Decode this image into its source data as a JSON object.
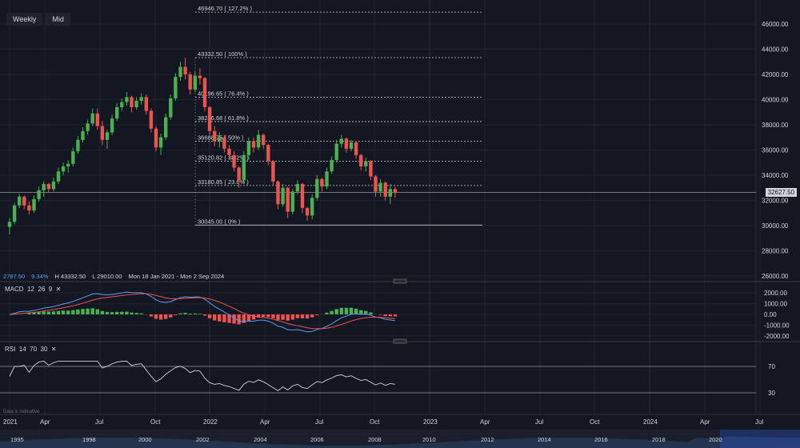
{
  "toolbar": {
    "interval": "Weekly",
    "price_mode": "Mid"
  },
  "fibs": [
    {
      "label": "46946.70 ( 127.2% )",
      "price": 46946.7
    },
    {
      "label": "43332.50 ( 100% )",
      "price": 43332.5
    },
    {
      "label": "40196.65 ( 76.4% )",
      "price": 40196.65
    },
    {
      "label": "38256.68 ( 61.8% )",
      "price": 38256.68
    },
    {
      "label": "36688.75 ( 50% )",
      "price": 36688.75
    },
    {
      "label": "35120.82 ( 38.2% )",
      "price": 35120.82
    },
    {
      "label": "33180.85 ( 23.6% )",
      "price": 33180.85
    },
    {
      "label": "30045.00 ( 0% )",
      "price": 30045.0
    }
  ],
  "price_axis": [
    "46000.00",
    "44000.00",
    "42000.00",
    "40000.00",
    "38000.00",
    "36000.00",
    "34000.00",
    "32000.00",
    "30000.00",
    "28000.00",
    "26000.00"
  ],
  "current_price": "32627.50",
  "info_bar": {
    "change": "2787.50",
    "percent": "9.34%",
    "high": "H 43332.50",
    "low": "L 29010.00",
    "range": "Mon 18 Jan 2021 - Mon 2 Sep 2024"
  },
  "macd": {
    "label": "MACD",
    "fast": "12",
    "slow": "26",
    "signal": "9",
    "axis": [
      "2000.00",
      "1000.00",
      "0.00",
      "-1000.00",
      "-2000.00"
    ]
  },
  "rsi": {
    "label": "RSI",
    "period": "14",
    "upper": "70",
    "lower": "30",
    "axis": [
      "70",
      "30"
    ]
  },
  "time_axis": [
    "2021",
    "Apr",
    "Jul",
    "Oct",
    "2022",
    "Apr",
    "Jul",
    "Oct",
    "2023",
    "Apr",
    "Jul",
    "Oct",
    "2024",
    "Apr",
    "Jul"
  ],
  "navigator_axis": [
    "1995",
    "1998",
    "2000",
    "2002",
    "2004",
    "2006",
    "2008",
    "2010",
    "2012",
    "2014",
    "2016",
    "2018",
    "2020"
  ],
  "data_note": "Data is indicative",
  "close_icon": "close-icon",
  "colors": {
    "up": "#26a69a",
    "up_bright": "#4caf50",
    "down": "#ef5350",
    "bg": "#131722",
    "macd_line": "#2962ff",
    "signal_line": "#ef5350"
  },
  "chart_data": {
    "type": "candlestick",
    "series": [
      {
        "name": "",
        "ohlc": [
          [
            29900,
            30600,
            29300,
            30300
          ],
          [
            30300,
            31800,
            30100,
            31600
          ],
          [
            31600,
            32500,
            31400,
            32300
          ],
          [
            32300,
            32400,
            31300,
            31600
          ],
          [
            31600,
            31900,
            30900,
            31200
          ],
          [
            31200,
            32400,
            31000,
            32100
          ],
          [
            32100,
            33100,
            31900,
            32800
          ],
          [
            32800,
            33500,
            32300,
            33300
          ],
          [
            33300,
            33400,
            32600,
            32900
          ],
          [
            32900,
            33800,
            32700,
            33500
          ],
          [
            33500,
            34600,
            33300,
            34300
          ],
          [
            34300,
            35000,
            34000,
            34700
          ],
          [
            34700,
            35200,
            34200,
            34900
          ],
          [
            34900,
            36200,
            34700,
            35900
          ],
          [
            35900,
            37100,
            35700,
            36800
          ],
          [
            36800,
            37800,
            36600,
            37500
          ],
          [
            37500,
            38400,
            37200,
            38100
          ],
          [
            38100,
            39300,
            37900,
            38900
          ],
          [
            38900,
            39300,
            37600,
            37900
          ],
          [
            37900,
            38300,
            36400,
            36800
          ],
          [
            36800,
            37600,
            36100,
            37400
          ],
          [
            37400,
            38800,
            37200,
            38500
          ],
          [
            38500,
            39700,
            38300,
            39400
          ],
          [
            39400,
            40100,
            39100,
            39800
          ],
          [
            39800,
            40600,
            39500,
            40200
          ],
          [
            40200,
            40300,
            39000,
            39400
          ],
          [
            39400,
            40200,
            39200,
            39900
          ],
          [
            39900,
            40500,
            39600,
            40200
          ],
          [
            40200,
            40400,
            38800,
            39100
          ],
          [
            39100,
            39300,
            37400,
            37700
          ],
          [
            37700,
            37900,
            35900,
            36200
          ],
          [
            36200,
            37300,
            35600,
            37000
          ],
          [
            37000,
            38900,
            36800,
            38600
          ],
          [
            38600,
            40400,
            38400,
            40100
          ],
          [
            40100,
            42100,
            39900,
            41800
          ],
          [
            41800,
            43000,
            41500,
            42600
          ],
          [
            42600,
            43332,
            41600,
            42000
          ],
          [
            42000,
            42200,
            40400,
            40800
          ],
          [
            40800,
            42200,
            40600,
            41900
          ],
          [
            41900,
            42500,
            41200,
            41700
          ],
          [
            41700,
            41800,
            39100,
            39400
          ],
          [
            39400,
            39500,
            37200,
            37500
          ],
          [
            37500,
            37900,
            36300,
            36700
          ],
          [
            36700,
            37400,
            36200,
            37000
          ],
          [
            37000,
            37200,
            35800,
            36100
          ],
          [
            36100,
            36400,
            35300,
            35600
          ],
          [
            35600,
            35900,
            34300,
            34600
          ],
          [
            34600,
            34700,
            33000,
            33600
          ],
          [
            33600,
            35900,
            33400,
            35600
          ],
          [
            35600,
            37000,
            35200,
            36700
          ],
          [
            36700,
            37000,
            35800,
            36200
          ],
          [
            36200,
            37600,
            36000,
            37200
          ],
          [
            37200,
            37300,
            36100,
            36400
          ],
          [
            36400,
            36500,
            34800,
            35100
          ],
          [
            35100,
            35200,
            33200,
            33500
          ],
          [
            33500,
            33600,
            31300,
            31700
          ],
          [
            31700,
            33300,
            31500,
            33000
          ],
          [
            33000,
            33100,
            30600,
            31100
          ],
          [
            31100,
            32900,
            30900,
            32700
          ],
          [
            32700,
            33600,
            32500,
            33300
          ],
          [
            33300,
            33400,
            31000,
            31400
          ],
          [
            31400,
            31500,
            30400,
            30800
          ],
          [
            30800,
            32500,
            30500,
            32200
          ],
          [
            32200,
            34000,
            32000,
            33700
          ],
          [
            33700,
            33800,
            32700,
            33100
          ],
          [
            33100,
            34600,
            32900,
            34300
          ],
          [
            34300,
            35500,
            34100,
            35200
          ],
          [
            35200,
            36800,
            35000,
            36500
          ],
          [
            36500,
            37200,
            36200,
            36900
          ],
          [
            36900,
            37000,
            35800,
            36100
          ],
          [
            36100,
            36800,
            35900,
            36600
          ],
          [
            36600,
            36700,
            35300,
            35600
          ],
          [
            35600,
            35700,
            34400,
            34700
          ],
          [
            34700,
            35400,
            34300,
            35100
          ],
          [
            35100,
            35200,
            33600,
            33900
          ],
          [
            33900,
            34000,
            32300,
            32700
          ],
          [
            32700,
            33700,
            32300,
            33400
          ],
          [
            33400,
            33500,
            32000,
            32300
          ],
          [
            32300,
            33300,
            31700,
            32900
          ],
          [
            32900,
            33100,
            32200,
            32600
          ]
        ]
      }
    ],
    "ylim": [
      26000,
      47000
    ]
  }
}
